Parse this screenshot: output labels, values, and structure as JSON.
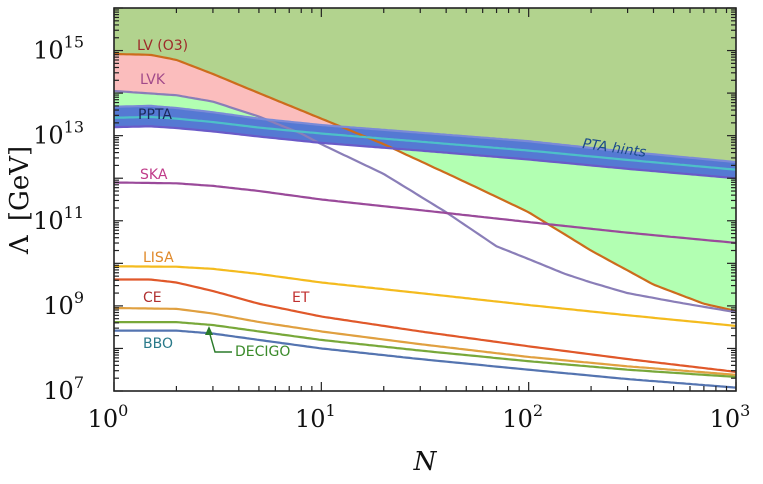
{
  "chart_data": {
    "type": "line",
    "xscale": "log",
    "yscale": "log",
    "xlim": [
      1,
      1000
    ],
    "ylim_exp": [
      7,
      16
    ],
    "xlabel": "N",
    "ylabel_symbol": "Λ",
    "ylabel_unit": "[GeV]",
    "x_ticks": [
      {
        "base": "10",
        "exp": "0",
        "value": 1
      },
      {
        "base": "10",
        "exp": "1",
        "value": 10
      },
      {
        "base": "10",
        "exp": "2",
        "value": 100
      },
      {
        "base": "10",
        "exp": "3",
        "value": 1000
      }
    ],
    "y_ticks": [
      {
        "base": "10",
        "exp": "7",
        "value": 7
      },
      {
        "base": "10",
        "exp": "9",
        "value": 9
      },
      {
        "base": "10",
        "exp": "11",
        "value": 11
      },
      {
        "base": "10",
        "exp": "13",
        "value": 13
      },
      {
        "base": "10",
        "exp": "15",
        "value": 15
      }
    ],
    "regions": [
      {
        "name": "excluded-top",
        "color": "#b2d38e",
        "upper_log": 16
      },
      {
        "name": "LV (O3) excluded",
        "color": "#fbbdbd"
      },
      {
        "name": "LVK excluded",
        "color": "#b2ffb2"
      },
      {
        "name": "PPTA excluded",
        "color": "#5579d3"
      }
    ],
    "series": [
      {
        "name": "LV (O3)",
        "label": "LV (O3)",
        "color": "#cc6c1c",
        "label_color": "#9e2a2a",
        "points": [
          [
            1,
            14.92
          ],
          [
            1.5,
            14.9
          ],
          [
            2,
            14.78
          ],
          [
            3,
            14.45
          ],
          [
            5,
            14.0
          ],
          [
            10,
            13.4
          ],
          [
            20,
            12.8
          ],
          [
            50,
            11.9
          ],
          [
            100,
            11.2
          ],
          [
            200,
            10.3
          ],
          [
            400,
            9.5
          ],
          [
            700,
            9.05
          ],
          [
            1000,
            8.88
          ]
        ]
      },
      {
        "name": "LVK",
        "label": "LVK",
        "color": "#8a7eb8",
        "label_color": "#a24a8a",
        "points": [
          [
            1,
            14.05
          ],
          [
            2,
            13.95
          ],
          [
            3,
            13.8
          ],
          [
            5,
            13.45
          ],
          [
            8,
            13.05
          ],
          [
            10,
            12.8
          ],
          [
            20,
            12.1
          ],
          [
            40,
            11.2
          ],
          [
            70,
            10.4
          ],
          [
            100,
            10.1
          ],
          [
            150,
            9.75
          ],
          [
            200,
            9.55
          ],
          [
            300,
            9.3
          ],
          [
            500,
            9.1
          ],
          [
            1000,
            8.85
          ]
        ]
      },
      {
        "name": "PPTA hints upper",
        "label": "",
        "color": "#7a8ad8",
        "label_color": "#333",
        "points": [
          [
            1,
            13.68
          ],
          [
            1.5,
            13.7
          ],
          [
            2,
            13.65
          ],
          [
            3,
            13.55
          ],
          [
            5,
            13.4
          ],
          [
            10,
            13.25
          ],
          [
            30,
            13.07
          ],
          [
            100,
            12.87
          ],
          [
            300,
            12.62
          ],
          [
            1000,
            12.38
          ]
        ]
      },
      {
        "name": "PPTA hints lower",
        "label": "",
        "color": "#6a5ac8",
        "label_color": "#333",
        "points": [
          [
            1,
            13.2
          ],
          [
            1.5,
            13.22
          ],
          [
            2,
            13.18
          ],
          [
            3,
            13.1
          ],
          [
            5,
            12.98
          ],
          [
            10,
            12.83
          ],
          [
            30,
            12.65
          ],
          [
            100,
            12.44
          ],
          [
            300,
            12.22
          ],
          [
            1000,
            12.0
          ]
        ]
      },
      {
        "name": "PPTA hints mid",
        "label": "",
        "color": "#4dc0c8",
        "label_color": "#333",
        "points": [
          [
            1,
            13.42
          ],
          [
            1.5,
            13.44
          ],
          [
            2,
            13.4
          ],
          [
            3,
            13.32
          ],
          [
            5,
            13.19
          ],
          [
            10,
            13.05
          ],
          [
            30,
            12.86
          ],
          [
            100,
            12.65
          ],
          [
            300,
            12.43
          ],
          [
            1000,
            12.2
          ]
        ]
      },
      {
        "name": "SKA",
        "label": "SKA",
        "color": "#9a4a9a",
        "label_color": "#c03c8a",
        "points": [
          [
            1,
            11.9
          ],
          [
            2,
            11.88
          ],
          [
            3,
            11.82
          ],
          [
            5,
            11.7
          ],
          [
            10,
            11.5
          ],
          [
            30,
            11.25
          ],
          [
            100,
            10.97
          ],
          [
            300,
            10.72
          ],
          [
            1000,
            10.48
          ]
        ]
      },
      {
        "name": "LISA",
        "label": "LISA",
        "color": "#f4bb1e",
        "label_color": "#e0892a",
        "points": [
          [
            1,
            9.93
          ],
          [
            2,
            9.92
          ],
          [
            3,
            9.87
          ],
          [
            5,
            9.75
          ],
          [
            10,
            9.55
          ],
          [
            30,
            9.3
          ],
          [
            100,
            9.02
          ],
          [
            300,
            8.78
          ],
          [
            1000,
            8.53
          ]
        ]
      },
      {
        "name": "CE",
        "label": "CE",
        "color": "#e0582a",
        "label_color": "#b03030",
        "points": [
          [
            1,
            9.62
          ],
          [
            1.5,
            9.62
          ],
          [
            2,
            9.55
          ],
          [
            3,
            9.35
          ],
          [
            5,
            9.05
          ],
          [
            10,
            8.75
          ],
          [
            30,
            8.4
          ],
          [
            100,
            8.05
          ],
          [
            300,
            7.75
          ],
          [
            1000,
            7.45
          ]
        ]
      },
      {
        "name": "ET",
        "label": "ET",
        "color": "#e0a040",
        "label_color": "#c03030",
        "points": [
          [
            1,
            8.95
          ],
          [
            2,
            8.93
          ],
          [
            3,
            8.82
          ],
          [
            5,
            8.62
          ],
          [
            10,
            8.4
          ],
          [
            30,
            8.1
          ],
          [
            100,
            7.8
          ],
          [
            300,
            7.58
          ],
          [
            1000,
            7.38
          ]
        ]
      },
      {
        "name": "DECIGO",
        "label": "DECIGO",
        "color": "#78a83a",
        "label_color": "#3a8a2a",
        "points": [
          [
            1,
            8.62
          ],
          [
            2,
            8.62
          ],
          [
            3,
            8.55
          ],
          [
            5,
            8.4
          ],
          [
            10,
            8.2
          ],
          [
            30,
            7.95
          ],
          [
            100,
            7.7
          ],
          [
            300,
            7.5
          ],
          [
            1000,
            7.33
          ]
        ]
      },
      {
        "name": "BBO",
        "label": "BBO",
        "color": "#5474b0",
        "label_color": "#2a7a8a",
        "points": [
          [
            1,
            8.42
          ],
          [
            2,
            8.42
          ],
          [
            3,
            8.35
          ],
          [
            5,
            8.2
          ],
          [
            10,
            8.0
          ],
          [
            30,
            7.75
          ],
          [
            100,
            7.5
          ],
          [
            300,
            7.28
          ],
          [
            1000,
            7.08
          ]
        ]
      }
    ],
    "annotations": [
      {
        "name": "PTA hints",
        "text": "PTA hints",
        "color": "#1a4a8a"
      },
      {
        "name": "PPTA",
        "text": "PPTA",
        "color": "#1a2a5a"
      }
    ]
  }
}
